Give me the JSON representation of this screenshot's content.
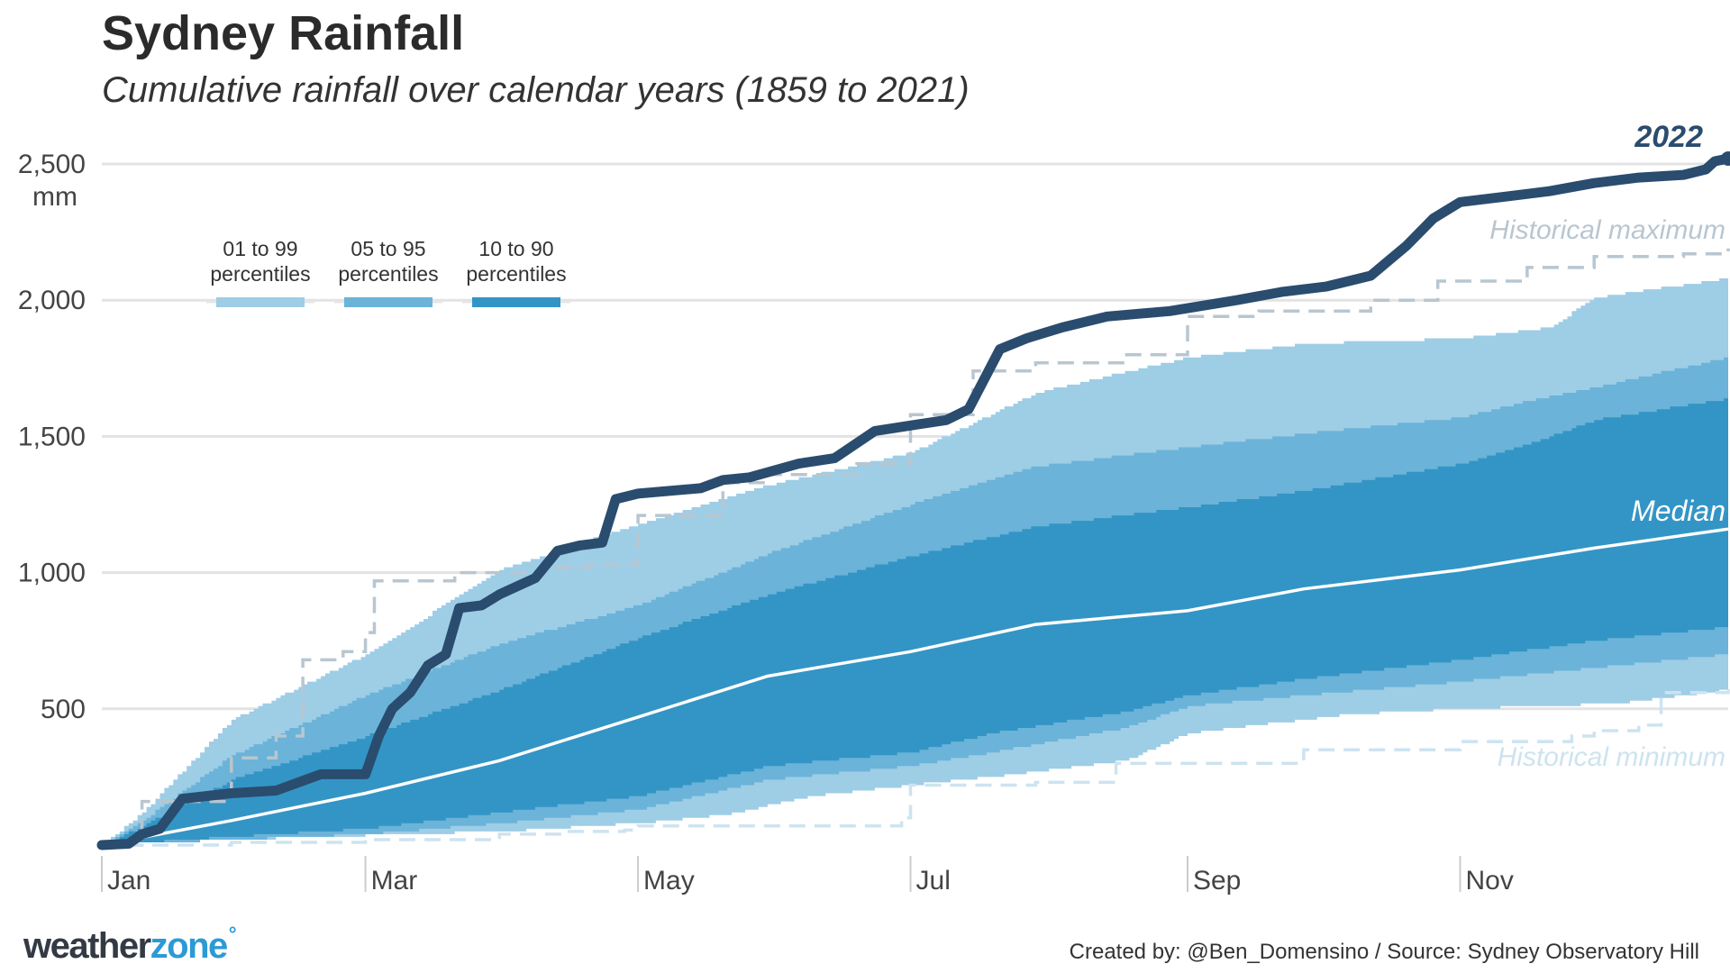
{
  "chart_data": {
    "type": "area",
    "title": "Sydney Rainfall",
    "subtitle": "Cumulative rainfall over calendar years (1859 to 2021)",
    "ylabel": "mm",
    "ylim": [
      0,
      2600
    ],
    "xlim": [
      1,
      365
    ],
    "yticks": [
      500,
      1000,
      1500,
      2000,
      2500
    ],
    "ytick_labels": [
      "500",
      "1,000",
      "1,500",
      "2,000",
      "2,500"
    ],
    "xticks": [
      1,
      60,
      121,
      182,
      244,
      305
    ],
    "xtick_labels": [
      "Jan",
      "Mar",
      "May",
      "Jul",
      "Sep",
      "Nov"
    ],
    "grid": "horizontal",
    "legend": {
      "placement": "top-left",
      "entries": [
        {
          "label": "01 to 99\npercentiles",
          "color": "#9ecde6"
        },
        {
          "label": "05 to 95\npercentiles",
          "color": "#6bb3d8"
        },
        {
          "label": "10 to 90\npercentiles",
          "color": "#3395c5"
        }
      ]
    },
    "colors": {
      "band_01_99": "#9ecde6",
      "band_05_95": "#6bb3d8",
      "band_10_90": "#3395c5",
      "line_2022": "#2a4c6e",
      "median": "#ffffff",
      "historical_max": "#b8c6d0",
      "historical_min": "#cde3f0"
    },
    "annotations": {
      "line_2022": "2022",
      "median": "Median",
      "historical_max": "Historical maximum",
      "historical_min": "Historical minimum"
    },
    "series": {
      "p01": [
        [
          1,
          0
        ],
        [
          10,
          10
        ],
        [
          30,
          20
        ],
        [
          50,
          30
        ],
        [
          60,
          35
        ],
        [
          90,
          50
        ],
        [
          121,
          80
        ],
        [
          140,
          110
        ],
        [
          160,
          180
        ],
        [
          182,
          220
        ],
        [
          200,
          250
        ],
        [
          230,
          310
        ],
        [
          244,
          410
        ],
        [
          280,
          480
        ],
        [
          305,
          500
        ],
        [
          340,
          520
        ],
        [
          365,
          570
        ]
      ],
      "p05": [
        [
          1,
          0
        ],
        [
          15,
          10
        ],
        [
          30,
          20
        ],
        [
          60,
          40
        ],
        [
          90,
          80
        ],
        [
          121,
          130
        ],
        [
          150,
          240
        ],
        [
          182,
          290
        ],
        [
          200,
          340
        ],
        [
          230,
          430
        ],
        [
          244,
          510
        ],
        [
          270,
          550
        ],
        [
          305,
          600
        ],
        [
          335,
          650
        ],
        [
          365,
          700
        ]
      ],
      "p10": [
        [
          1,
          0
        ],
        [
          15,
          15
        ],
        [
          30,
          30
        ],
        [
          60,
          60
        ],
        [
          90,
          120
        ],
        [
          121,
          180
        ],
        [
          150,
          290
        ],
        [
          182,
          340
        ],
        [
          200,
          410
        ],
        [
          230,
          490
        ],
        [
          244,
          550
        ],
        [
          270,
          610
        ],
        [
          305,
          680
        ],
        [
          335,
          750
        ],
        [
          365,
          800
        ]
      ],
      "median": [
        [
          1,
          0
        ],
        [
          30,
          90
        ],
        [
          60,
          190
        ],
        [
          90,
          310
        ],
        [
          121,
          470
        ],
        [
          150,
          620
        ],
        [
          182,
          710
        ],
        [
          210,
          810
        ],
        [
          244,
          860
        ],
        [
          270,
          940
        ],
        [
          305,
          1010
        ],
        [
          335,
          1090
        ],
        [
          365,
          1160
        ]
      ],
      "p90": [
        [
          1,
          0
        ],
        [
          10,
          70
        ],
        [
          30,
          240
        ],
        [
          60,
          400
        ],
        [
          90,
          570
        ],
        [
          121,
          760
        ],
        [
          150,
          920
        ],
        [
          182,
          1060
        ],
        [
          210,
          1170
        ],
        [
          244,
          1240
        ],
        [
          270,
          1300
        ],
        [
          305,
          1400
        ],
        [
          320,
          1470
        ],
        [
          335,
          1560
        ],
        [
          365,
          1640
        ]
      ],
      "p95": [
        [
          1,
          0
        ],
        [
          10,
          90
        ],
        [
          30,
          330
        ],
        [
          60,
          550
        ],
        [
          90,
          740
        ],
        [
          121,
          880
        ],
        [
          150,
          1070
        ],
        [
          182,
          1250
        ],
        [
          210,
          1390
        ],
        [
          244,
          1460
        ],
        [
          270,
          1510
        ],
        [
          305,
          1570
        ],
        [
          320,
          1630
        ],
        [
          335,
          1680
        ],
        [
          365,
          1790
        ]
      ],
      "p99": [
        [
          1,
          0
        ],
        [
          10,
          120
        ],
        [
          30,
          460
        ],
        [
          60,
          700
        ],
        [
          90,
          1010
        ],
        [
          121,
          1180
        ],
        [
          150,
          1320
        ],
        [
          182,
          1440
        ],
        [
          210,
          1660
        ],
        [
          244,
          1790
        ],
        [
          270,
          1840
        ],
        [
          305,
          1860
        ],
        [
          325,
          1900
        ],
        [
          335,
          2010
        ],
        [
          365,
          2080
        ]
      ],
      "historical_max": [
        [
          1,
          0
        ],
        [
          10,
          160
        ],
        [
          30,
          320
        ],
        [
          40,
          400
        ],
        [
          46,
          680
        ],
        [
          55,
          710
        ],
        [
          60,
          780
        ],
        [
          62,
          970
        ],
        [
          80,
          1000
        ],
        [
          100,
          1020
        ],
        [
          110,
          1030
        ],
        [
          121,
          1210
        ],
        [
          140,
          1330
        ],
        [
          150,
          1360
        ],
        [
          170,
          1400
        ],
        [
          182,
          1580
        ],
        [
          196,
          1740
        ],
        [
          210,
          1770
        ],
        [
          230,
          1800
        ],
        [
          244,
          1940
        ],
        [
          260,
          1960
        ],
        [
          285,
          2000
        ],
        [
          300,
          2070
        ],
        [
          320,
          2120
        ],
        [
          335,
          2160
        ],
        [
          355,
          2170
        ],
        [
          365,
          2190
        ]
      ],
      "historical_min": [
        [
          1,
          0
        ],
        [
          30,
          10
        ],
        [
          60,
          20
        ],
        [
          90,
          40
        ],
        [
          105,
          50
        ],
        [
          118,
          55
        ],
        [
          121,
          70
        ],
        [
          180,
          100
        ],
        [
          182,
          220
        ],
        [
          210,
          230
        ],
        [
          228,
          300
        ],
        [
          244,
          300
        ],
        [
          270,
          350
        ],
        [
          305,
          380
        ],
        [
          330,
          400
        ],
        [
          335,
          420
        ],
        [
          345,
          440
        ],
        [
          350,
          560
        ],
        [
          365,
          580
        ]
      ],
      "y2022": [
        [
          1,
          0
        ],
        [
          7,
          5
        ],
        [
          10,
          40
        ],
        [
          14,
          60
        ],
        [
          19,
          170
        ],
        [
          30,
          190
        ],
        [
          40,
          200
        ],
        [
          45,
          230
        ],
        [
          50,
          260
        ],
        [
          60,
          260
        ],
        [
          63,
          400
        ],
        [
          66,
          500
        ],
        [
          70,
          560
        ],
        [
          74,
          660
        ],
        [
          78,
          700
        ],
        [
          81,
          870
        ],
        [
          86,
          880
        ],
        [
          90,
          920
        ],
        [
          98,
          980
        ],
        [
          103,
          1080
        ],
        [
          108,
          1100
        ],
        [
          113,
          1110
        ],
        [
          116,
          1270
        ],
        [
          121,
          1290
        ],
        [
          135,
          1310
        ],
        [
          140,
          1340
        ],
        [
          146,
          1350
        ],
        [
          157,
          1400
        ],
        [
          165,
          1420
        ],
        [
          174,
          1520
        ],
        [
          182,
          1540
        ],
        [
          190,
          1560
        ],
        [
          195,
          1600
        ],
        [
          202,
          1820
        ],
        [
          208,
          1860
        ],
        [
          216,
          1900
        ],
        [
          226,
          1940
        ],
        [
          240,
          1960
        ],
        [
          255,
          2000
        ],
        [
          265,
          2030
        ],
        [
          275,
          2050
        ],
        [
          285,
          2090
        ],
        [
          293,
          2200
        ],
        [
          299,
          2300
        ],
        [
          305,
          2360
        ],
        [
          315,
          2380
        ],
        [
          325,
          2400
        ],
        [
          335,
          2430
        ],
        [
          345,
          2450
        ],
        [
          355,
          2460
        ],
        [
          360,
          2480
        ],
        [
          362,
          2510
        ],
        [
          365,
          2520
        ]
      ]
    }
  },
  "footer": {
    "logo_main": "weather",
    "logo_accent": "zone",
    "credit": "Created by: @Ben_Domensino / Source: Sydney Observatory Hill"
  }
}
